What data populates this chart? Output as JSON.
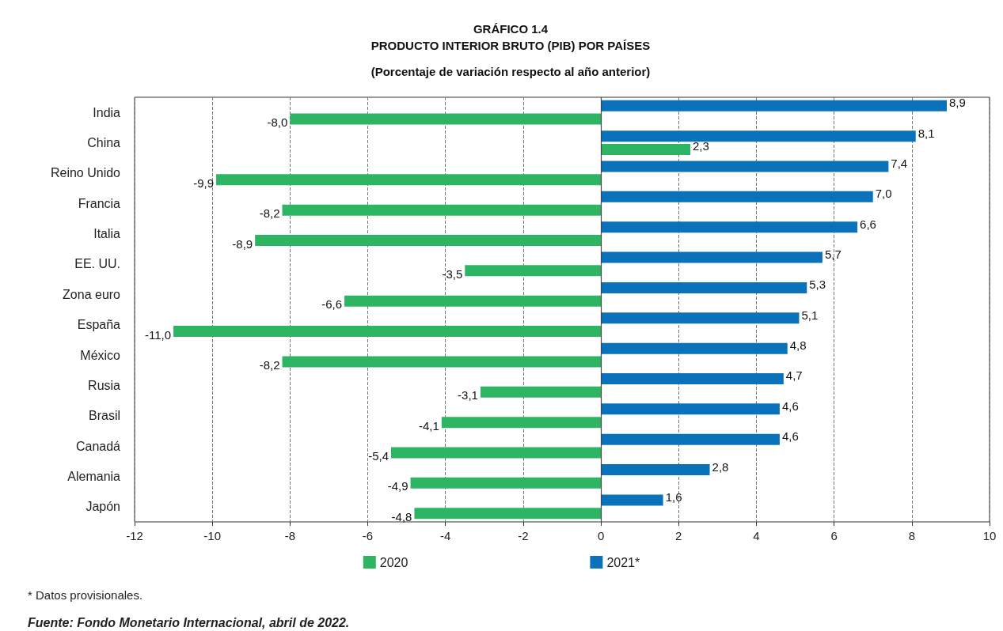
{
  "chart_data": {
    "type": "bar",
    "orientation": "horizontal",
    "title": "GRÁFICO 1.4",
    "subtitle": "PRODUCTO INTERIOR BRUTO (PIB) POR PAÍSES",
    "annotations": [
      "(Porcentaje de variación respecto al año anterior)",
      "* Datos provisionales.",
      "Fuente: Fondo Monetario Internacional, abril de 2022."
    ],
    "categories": [
      "India",
      "China",
      "Reino Unido",
      "Francia",
      "Italia",
      "EE. UU.",
      "Zona euro",
      "España",
      "México",
      "Rusia",
      "Brasil",
      "Canadá",
      "Alemania",
      "Japón"
    ],
    "series": [
      {
        "name": "2020",
        "color": "#2db563",
        "values": [
          -8.0,
          2.3,
          -9.9,
          -8.2,
          -8.9,
          -3.5,
          -6.6,
          -11.0,
          -8.2,
          -3.1,
          -4.1,
          -5.4,
          -4.9,
          -4.8
        ],
        "value_labels": [
          "-8,0",
          "2,3",
          "-9,9",
          "-8,2",
          "-8,9",
          "-3,5",
          "-6,6",
          "-11,0",
          "-8,2",
          "-3,1",
          "-4,1",
          "-5,4",
          "-4,9",
          "-4,8"
        ]
      },
      {
        "name": "2021*",
        "color": "#0a72ba",
        "values": [
          8.9,
          8.1,
          7.4,
          7.0,
          6.6,
          5.7,
          5.3,
          5.1,
          4.8,
          4.7,
          4.6,
          4.6,
          2.8,
          1.6
        ],
        "value_labels": [
          "8,9",
          "8,1",
          "7,4",
          "7,0",
          "6,6",
          "5,7",
          "5,3",
          "5,1",
          "4,8",
          "4,7",
          "4,6",
          "4,6",
          "2,8",
          "1,6"
        ]
      }
    ],
    "xlim": [
      -12,
      10
    ],
    "xticks": [
      -12,
      -10,
      -8,
      -6,
      -4,
      -2,
      0,
      2,
      4,
      6,
      8,
      10
    ],
    "ref_lines": [
      {
        "axis": "x",
        "value": 0,
        "color": "#444444",
        "line_style": "solid"
      }
    ],
    "grid": "x",
    "legend": "bottom"
  }
}
